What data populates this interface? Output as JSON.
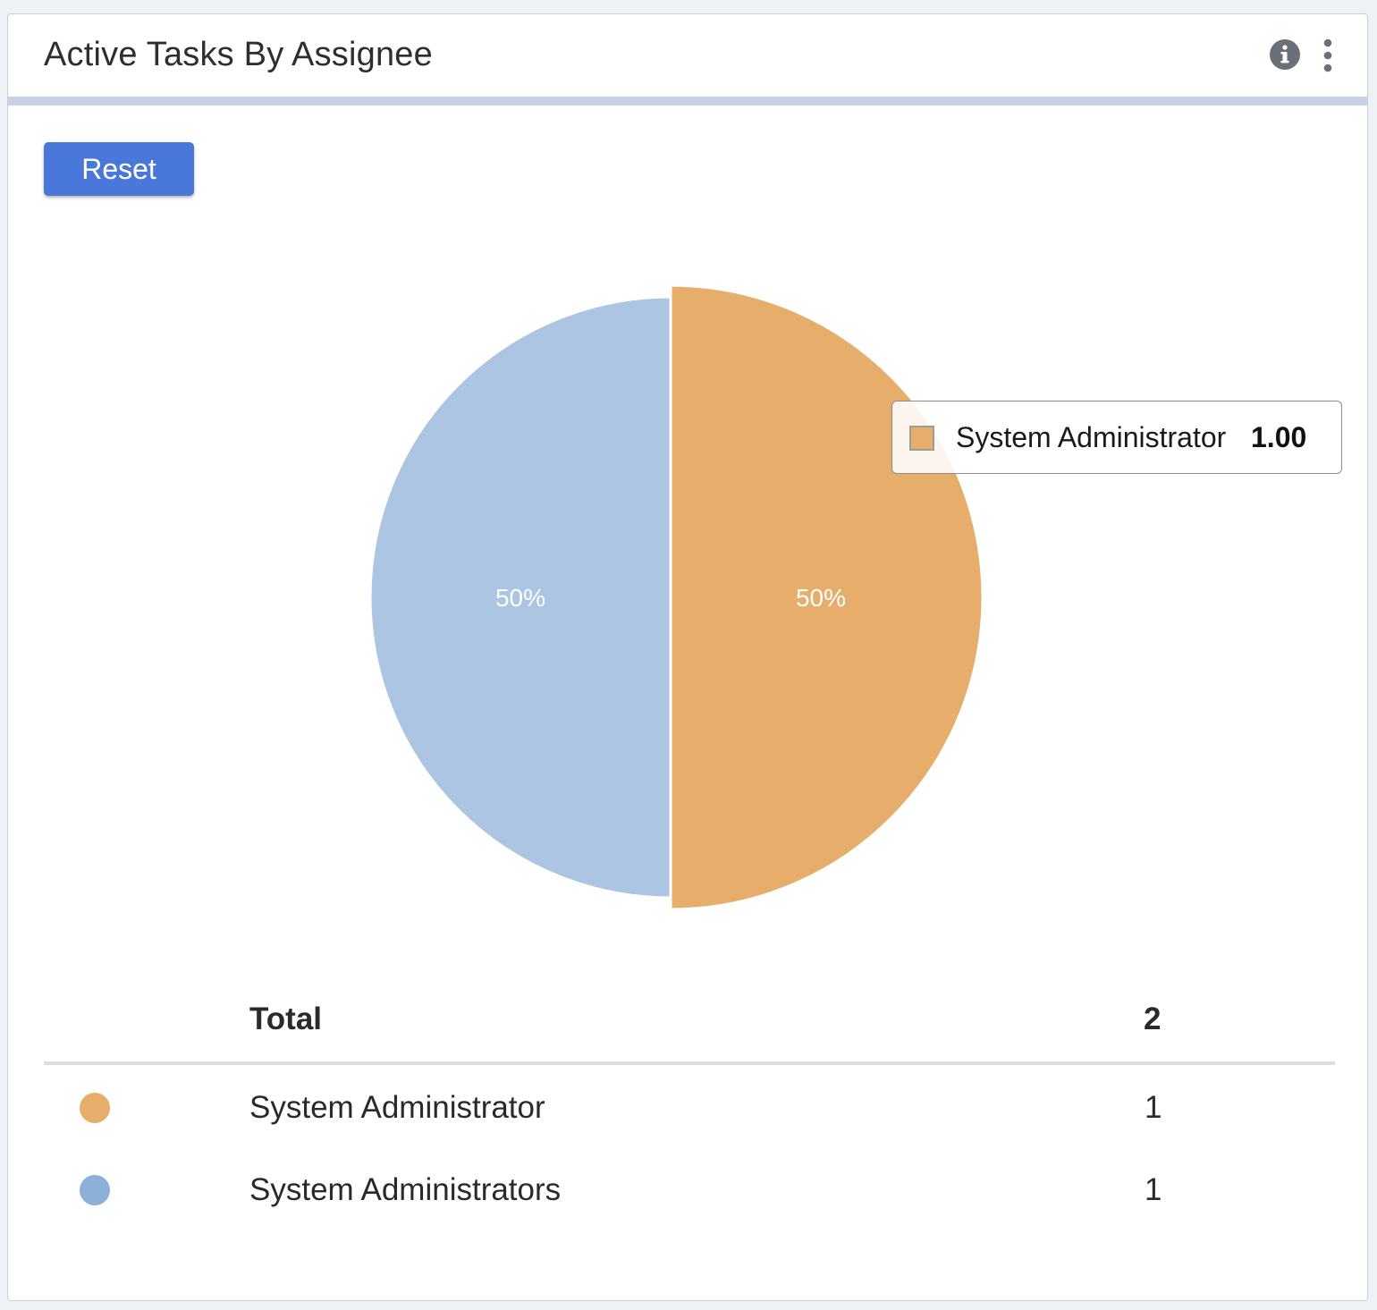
{
  "widget": {
    "title": "Active Tasks By Assignee",
    "info_icon": "info-circle-icon",
    "menu_icon": "kebab-menu-icon",
    "reset_label": "Reset"
  },
  "chart_data": {
    "type": "pie",
    "categories": [
      "System Administrator",
      "System Administrators"
    ],
    "values": [
      1,
      1
    ],
    "slice_labels": [
      "50%",
      "50%"
    ],
    "colors": [
      "#e7ad6b",
      "#abc5e2"
    ],
    "highlighted_index": 0,
    "tooltip": {
      "name": "System Administrator",
      "value": "1.00"
    }
  },
  "summary": {
    "total_label": "Total",
    "total_value": "2",
    "rows": [
      {
        "name": "System Administrator",
        "value": "1",
        "color": "#e7ad6b"
      },
      {
        "name": "System Administrators",
        "value": "1",
        "color": "#8db0d8"
      }
    ]
  }
}
